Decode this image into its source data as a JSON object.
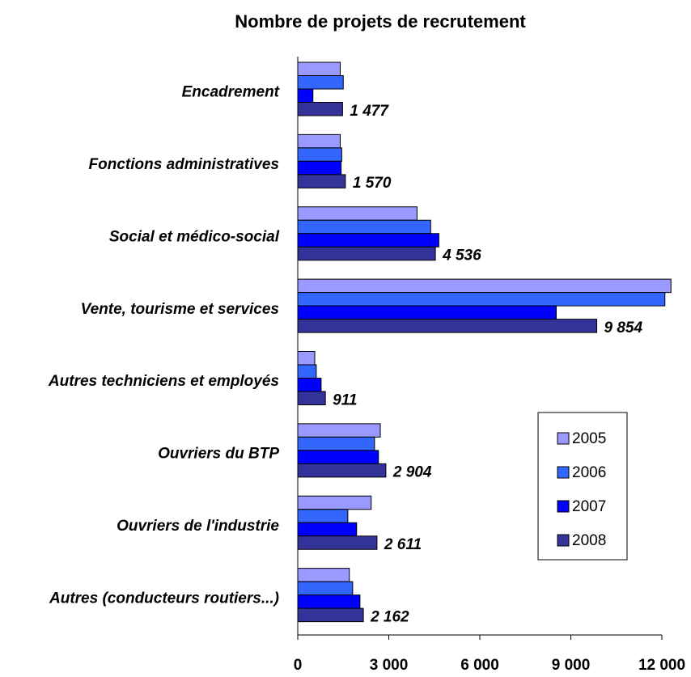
{
  "chart_data": {
    "type": "bar",
    "orientation": "horizontal",
    "title": "Nombre de projets de recrutement",
    "categories": [
      "Encadrement",
      "Fonctions administratives",
      "Social et médico-social",
      "Vente, tourisme et services",
      "Autres techniciens et employés",
      "Ouvriers du BTP",
      "Ouvriers de l'industrie",
      "Autres (conducteurs routiers...)"
    ],
    "series": [
      {
        "name": "2005",
        "color": "#9999ff",
        "values": [
          1400,
          1400,
          3930,
          12300,
          560,
          2720,
          2420,
          1700
        ]
      },
      {
        "name": "2006",
        "color": "#3366ff",
        "values": [
          1500,
          1450,
          4380,
          12100,
          610,
          2530,
          1650,
          1810
        ]
      },
      {
        "name": "2007",
        "color": "#0000ff",
        "values": [
          500,
          1430,
          4650,
          8520,
          770,
          2660,
          1940,
          2050
        ]
      },
      {
        "name": "2008",
        "color": "#333399",
        "values": [
          1477,
          1570,
          4536,
          9854,
          911,
          2904,
          2611,
          2162
        ],
        "value_labels": [
          "1 477",
          "1 570",
          "4 536",
          "9 854",
          "911",
          "2 904",
          "2 611",
          "2 162"
        ]
      }
    ],
    "xlim": [
      0,
      12000
    ],
    "xticks": [
      0,
      {
        "value": 3000,
        "label": "3 000"
      },
      {
        "value": 6000,
        "label": "6 000"
      },
      {
        "value": 9000,
        "label": "9 000"
      },
      {
        "value": 12000,
        "label": "12 000"
      }
    ],
    "legend": "right"
  }
}
